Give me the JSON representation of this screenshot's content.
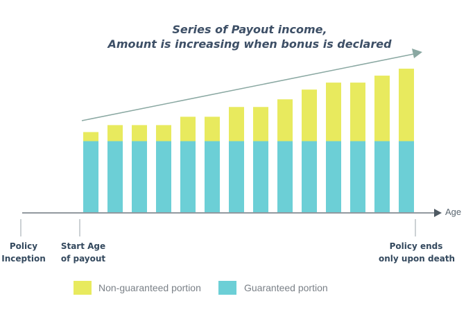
{
  "chart_data": {
    "type": "bar",
    "stacked": true,
    "title": "Series of Payout income,",
    "subtitle": "Amount is increasing when bonus is declared",
    "xlabel": "Age",
    "ylabel": "",
    "ylim": [
      0,
      210
    ],
    "grid": false,
    "legend_placement": "bottom",
    "categories": [
      "",
      "",
      "",
      "",
      "",
      "",
      "",
      "",
      "",
      "",
      "",
      "",
      "",
      ""
    ],
    "series": [
      {
        "name": "Guaranteed portion",
        "color": "#6ccfd6",
        "values": [
          102,
          102,
          102,
          102,
          102,
          102,
          102,
          102,
          102,
          102,
          102,
          102,
          102,
          102
        ]
      },
      {
        "name": "Non-guaranteed portion",
        "color": "#e8ea5e",
        "values": [
          13,
          23,
          23,
          23,
          35,
          35,
          49,
          49,
          60,
          74,
          84,
          84,
          94,
          104
        ]
      }
    ],
    "annotations": [
      {
        "text": "Policy\nInception"
      },
      {
        "text": "Start Age\nof payout"
      },
      {
        "text": "Policy ends\nonly upon death"
      }
    ],
    "trend_arrow_color": "#8aa8a2",
    "axis_color": "#4f5a63"
  }
}
